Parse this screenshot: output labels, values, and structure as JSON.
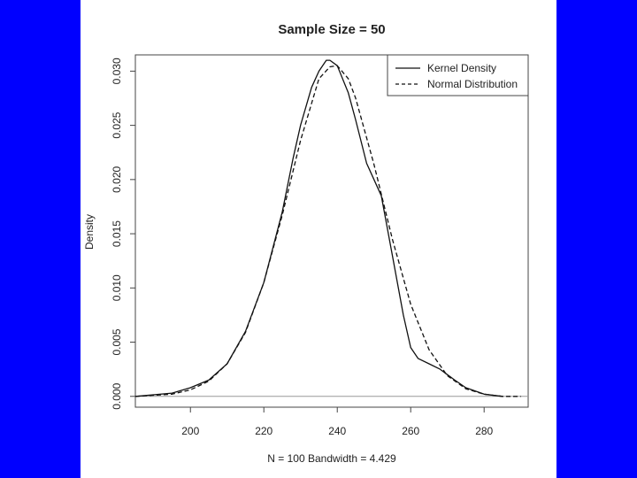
{
  "slide": {
    "background": "#0000ff",
    "panel": "#ffffff"
  },
  "chart_data": {
    "type": "line",
    "title": "Sample Size = 50",
    "xlabel": "N = 100   Bandwidth = 4.429",
    "ylabel": "Density",
    "xlim": [
      185,
      292
    ],
    "ylim": [
      -0.001,
      0.0315
    ],
    "x_ticks": [
      "200",
      "220",
      "240",
      "260",
      "280"
    ],
    "x_tick_values": [
      200,
      220,
      240,
      260,
      280
    ],
    "y_ticks": [
      "0.000",
      "0.005",
      "0.010",
      "0.015",
      "0.020",
      "0.025",
      "0.030"
    ],
    "y_tick_values": [
      0,
      0.005,
      0.01,
      0.015,
      0.02,
      0.025,
      0.03
    ],
    "zero_line": true,
    "legend": {
      "placement": "top-right",
      "entries": [
        "Kernel Density",
        "Normal Distribution"
      ]
    },
    "series": [
      {
        "name": "Kernel Density",
        "style": "solid",
        "x": [
          185,
          195,
          200,
          205,
          210,
          215,
          220,
          225,
          228,
          230,
          233,
          235,
          237,
          238,
          240,
          243,
          245,
          248,
          250,
          252,
          255,
          258,
          260,
          262,
          265,
          268,
          270,
          272,
          275,
          280,
          285
        ],
        "y": [
          0.0,
          0.0003,
          0.0008,
          0.0015,
          0.003,
          0.006,
          0.0105,
          0.017,
          0.022,
          0.025,
          0.0285,
          0.03,
          0.031,
          0.031,
          0.0305,
          0.028,
          0.0255,
          0.0215,
          0.02,
          0.0185,
          0.013,
          0.0075,
          0.0045,
          0.0035,
          0.003,
          0.0025,
          0.002,
          0.0015,
          0.0008,
          0.0002,
          0.0
        ]
      },
      {
        "name": "Normal Distribution",
        "style": "dashed",
        "x": [
          185,
          195,
          200,
          205,
          210,
          215,
          220,
          225,
          230,
          235,
          238,
          240,
          243,
          245,
          250,
          255,
          260,
          265,
          270,
          275,
          280,
          285,
          290
        ],
        "y": [
          0.0,
          0.0002,
          0.0006,
          0.0014,
          0.003,
          0.0059,
          0.0105,
          0.0167,
          0.0236,
          0.0293,
          0.0304,
          0.0305,
          0.0293,
          0.0275,
          0.0214,
          0.0145,
          0.0085,
          0.0043,
          0.0019,
          0.0007,
          0.0002,
          0.0,
          0.0
        ]
      }
    ]
  }
}
